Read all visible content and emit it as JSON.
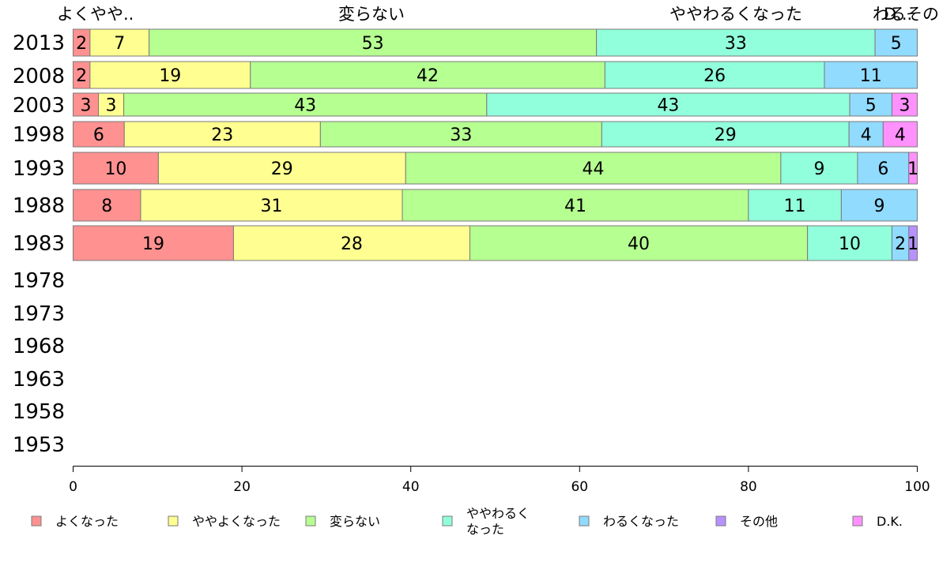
{
  "chart_data": {
    "type": "bar",
    "orientation": "horizontal",
    "stacked": true,
    "xlim": [
      0,
      100
    ],
    "x_ticks": [
      0,
      20,
      40,
      60,
      80,
      100
    ],
    "x_tick_labels": [
      "0",
      "20",
      "40",
      "60",
      "80",
      "100"
    ],
    "categories": [
      "2013",
      "2008",
      "2003",
      "1998",
      "1993",
      "1988",
      "1983",
      "1978",
      "1973",
      "1968",
      "1963",
      "1958",
      "1953"
    ],
    "top_labels": [
      "よくやや..",
      "変らない",
      "ややわるくなった",
      "わるその..",
      "D..."
    ],
    "legend_position": "bottom",
    "series": [
      {
        "name": "よくなった",
        "color": "#ff9191",
        "values": [
          2,
          2,
          3,
          6,
          10,
          8,
          19,
          null,
          null,
          null,
          null,
          null,
          null
        ]
      },
      {
        "name": "ややよくなった",
        "color": "#ffff91",
        "values": [
          7,
          19,
          3,
          23,
          29,
          31,
          28,
          null,
          null,
          null,
          null,
          null,
          null
        ]
      },
      {
        "name": "変らない",
        "color": "#b6ff91",
        "values": [
          53,
          42,
          43,
          33,
          44,
          41,
          40,
          null,
          null,
          null,
          null,
          null,
          null
        ]
      },
      {
        "name": "ややわるく\nなった",
        "color": "#91ffdb",
        "values": [
          33,
          26,
          43,
          29,
          9,
          11,
          10,
          null,
          null,
          null,
          null,
          null,
          null
        ]
      },
      {
        "name": "わるくなった",
        "color": "#91dbff",
        "values": [
          5,
          11,
          5,
          4,
          6,
          9,
          2,
          null,
          null,
          null,
          null,
          null,
          null
        ]
      },
      {
        "name": "その他",
        "color": "#b691ff",
        "values": [
          0,
          0,
          0,
          0,
          0,
          0,
          1,
          null,
          null,
          null,
          null,
          null,
          null
        ]
      },
      {
        "name": "D.K.",
        "color": "#ff91ff",
        "values": [
          0,
          0,
          3,
          4,
          1,
          0,
          0,
          null,
          null,
          null,
          null,
          null,
          null
        ]
      }
    ]
  }
}
